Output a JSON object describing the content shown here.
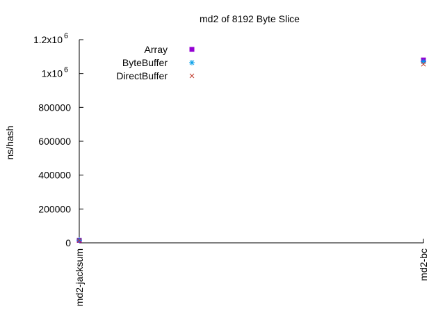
{
  "chart_data": {
    "type": "scatter",
    "title": "md2 of 8192 Byte Slice",
    "xlabel": "",
    "ylabel": "ns/hash",
    "categories": [
      "md2-jacksum",
      "md2-bc"
    ],
    "ylim": [
      0,
      1200000
    ],
    "yticks": [
      {
        "value": 0,
        "label": "0"
      },
      {
        "value": 200000,
        "label": "200000"
      },
      {
        "value": 400000,
        "label": "400000"
      },
      {
        "value": 600000,
        "label": "600000"
      },
      {
        "value": 800000,
        "label": "800000"
      },
      {
        "value": 1000000,
        "label": "1x10",
        "exp": "6"
      },
      {
        "value": 1200000,
        "label": "1.2x10",
        "exp": "6"
      }
    ],
    "legend_position": "top-left",
    "grid": false,
    "series": [
      {
        "name": "Array",
        "marker": "square",
        "color": "#9400d3",
        "values": [
          15000,
          1080000
        ]
      },
      {
        "name": "ByteBuffer",
        "marker": "star",
        "color": "#009ee8",
        "values": [
          16000,
          1070000
        ]
      },
      {
        "name": "DirectBuffer",
        "marker": "x",
        "color": "#c0392b",
        "values": [
          14000,
          1055000
        ]
      }
    ]
  }
}
